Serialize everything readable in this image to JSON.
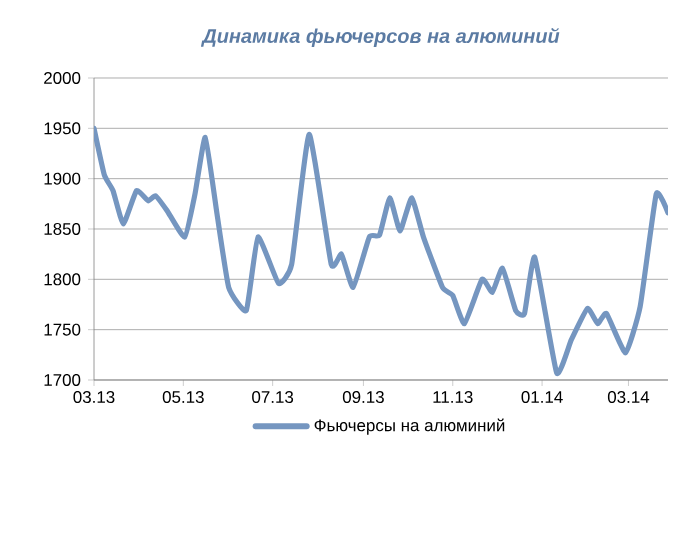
{
  "chart_data": {
    "type": "line",
    "title": "Динамика фьючерсов на алюминий",
    "xlim": [
      "2013-03-01",
      "2014-03-28"
    ],
    "ylim": [
      1700,
      2000
    ],
    "xticks": [
      {
        "value": "2013-03",
        "label": "03.13"
      },
      {
        "value": "2013-05",
        "label": "05.13"
      },
      {
        "value": "2013-07",
        "label": "07.13"
      },
      {
        "value": "2013-09",
        "label": "09.13"
      },
      {
        "value": "2013-11",
        "label": "11.13"
      },
      {
        "value": "2014-01",
        "label": "01.14"
      },
      {
        "value": "2014-03",
        "label": "03.14"
      }
    ],
    "yticks": [
      1700,
      1750,
      1800,
      1850,
      1900,
      1950,
      2000
    ],
    "grid": "y",
    "legend": "bottom",
    "marker": "none",
    "line_style": "solid",
    "series": [
      {
        "name": "Фьючерсы на алюминий",
        "color": "#7596c0",
        "x": [
          "2013-03-01",
          "2013-03-08",
          "2013-03-14",
          "2013-03-21",
          "2013-03-30",
          "2013-04-07",
          "2013-04-12",
          "2013-04-20",
          "2013-05-02",
          "2013-05-09",
          "2013-05-16",
          "2013-05-24",
          "2013-06-01",
          "2013-06-13",
          "2013-06-21",
          "2013-07-05",
          "2013-07-14",
          "2013-07-26",
          "2013-08-10",
          "2013-08-17",
          "2013-08-25",
          "2013-09-05",
          "2013-09-12",
          "2013-09-19",
          "2013-09-26",
          "2013-10-04",
          "2013-10-12",
          "2013-10-25",
          "2013-11-01",
          "2013-11-09",
          "2013-11-21",
          "2013-11-28",
          "2013-12-05",
          "2013-12-14",
          "2013-12-20",
          "2013-12-27",
          "2014-01-11",
          "2014-01-21",
          "2014-02-01",
          "2014-02-08",
          "2014-02-14",
          "2014-02-27",
          "2014-03-09",
          "2014-03-20",
          "2014-03-28"
        ],
        "values": [
          1950,
          1904,
          1888,
          1855,
          1888,
          1878,
          1883,
          1868,
          1842,
          1885,
          1941,
          1865,
          1792,
          1769,
          1842,
          1796,
          1815,
          1944,
          1815,
          1825,
          1792,
          1842,
          1844,
          1881,
          1848,
          1881,
          1842,
          1792,
          1784,
          1756,
          1800,
          1787,
          1811,
          1769,
          1766,
          1822,
          1707,
          1740,
          1771,
          1756,
          1766,
          1727,
          1773,
          1885,
          1866
        ]
      }
    ]
  }
}
